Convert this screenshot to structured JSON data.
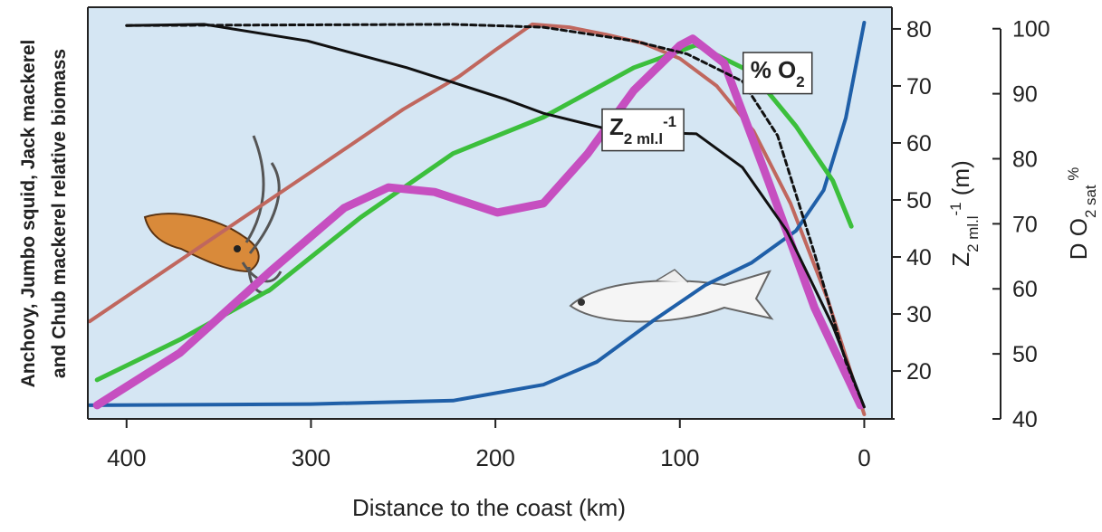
{
  "chart_data": {
    "type": "line",
    "x_label": "Distance to the coast (km)",
    "y_label_left": [
      "Anchovy, Jumbo squid, Jack mackerel",
      "and Chub mackerel relative biomass"
    ],
    "y_label": [
      "Z",
      "2 ml.l",
      "-1",
      " (m)"
    ],
    "y2_label": [
      "D O",
      "2 sat",
      " %"
    ],
    "xlim": [
      421,
      -15
    ],
    "xticks": [
      400,
      300,
      200,
      100,
      0
    ],
    "ylim": [
      11.6,
      83.8
    ],
    "yticks": [
      20,
      30,
      40,
      50,
      60,
      70,
      80
    ],
    "y2lim": [
      40,
      103.3
    ],
    "y2ticks": [
      40,
      50,
      60,
      70,
      80,
      90,
      100
    ],
    "annotations": [
      {
        "parts": [
          "Z",
          "2 ml.l",
          "-1"
        ],
        "x": 120,
        "y": 63
      },
      {
        "parts": [
          "% O",
          "2"
        ],
        "x": 47,
        "y": 73
      }
    ],
    "series": [
      {
        "color": "#c0675e",
        "width": 4,
        "x": [
          420,
          350,
          300,
          250,
          220,
          200,
          180,
          160,
          140,
          120,
          100,
          80,
          60,
          40,
          20,
          0
        ],
        "values": [
          28.7,
          44,
          54.9,
          65.9,
          71.6,
          76.3,
          80.8,
          80.3,
          79,
          77.5,
          74.8,
          70,
          62.1,
          49.4,
          32.7,
          12.4
        ]
      },
      {
        "color": "#1f5fa8",
        "width": 4,
        "x": [
          420,
          300,
          223,
          174,
          145,
          115,
          86,
          61,
          37,
          22,
          10,
          0
        ],
        "values": [
          14,
          14.2,
          14.8,
          17.6,
          21.6,
          28.7,
          35.1,
          39,
          44.6,
          51.7,
          64.4,
          81.1
        ]
      },
      {
        "color": "#3cbf3c",
        "width": 5,
        "axis": "y2",
        "x": [
          416,
          371,
          322,
          273,
          223,
          174,
          125,
          91,
          61,
          37,
          17,
          7
        ],
        "values": [
          46,
          52.2,
          59.9,
          71,
          80.8,
          86.4,
          94,
          97.5,
          93.3,
          85,
          76.6,
          69.6
        ]
      },
      {
        "color": "#c64fc0",
        "width": 9,
        "x": [
          416,
          371,
          322,
          282,
          258,
          233,
          199,
          174,
          150,
          125,
          100,
          93,
          76,
          52,
          27,
          2
        ],
        "values": [
          14,
          23.2,
          37.5,
          48.6,
          52.2,
          51.4,
          47.8,
          49.4,
          58.1,
          69.2,
          77.1,
          78.3,
          74,
          53.3,
          31.1,
          14
        ]
      },
      {
        "color": "#111111",
        "width": 3,
        "x": [
          400,
          358,
          302,
          248,
          194,
          174,
          135,
          91,
          66,
          42,
          17,
          0
        ],
        "values": [
          80.6,
          80.8,
          77.9,
          73.2,
          67.6,
          65.2,
          62.1,
          61.6,
          55.7,
          44.6,
          27.9,
          13.7
        ]
      },
      {
        "color": "#111111",
        "width": 3,
        "dash": "6 4",
        "x": [
          400,
          223,
          174,
          125,
          96,
          66,
          47,
          27,
          10,
          0
        ],
        "values": [
          80.6,
          80.8,
          80.3,
          77.9,
          75.6,
          70.8,
          61.3,
          40.6,
          21.6,
          13.7
        ]
      }
    ]
  }
}
